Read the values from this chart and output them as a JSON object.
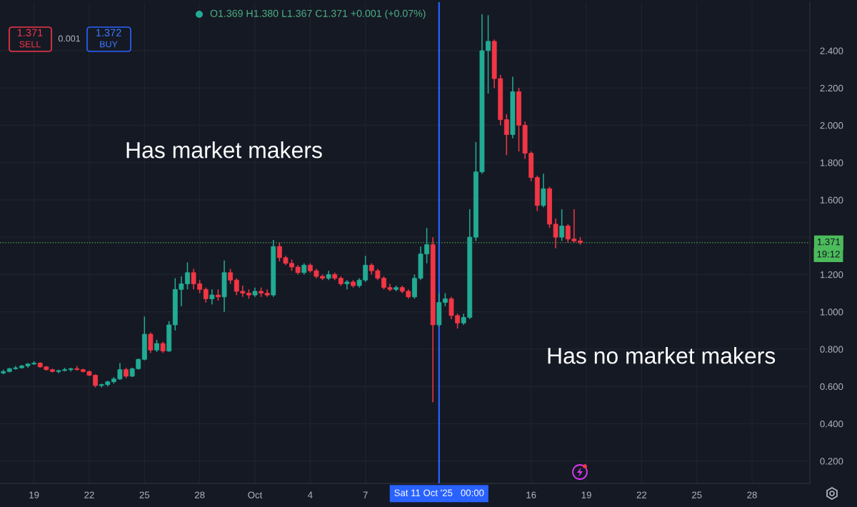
{
  "chart_data": {
    "type": "candlestick",
    "subtitle": "O1.369 H1.380 L1.367 C1.371 +0.001 (+0.07%)",
    "x": [
      "2025-09-17T08:00",
      "2025-09-17T16:00",
      "2025-09-18T00:00",
      "2025-09-18T08:00",
      "2025-09-18T16:00",
      "2025-09-19T00:00",
      "2025-09-19T08:00",
      "2025-09-19T16:00",
      "2025-09-20T00:00",
      "2025-09-20T08:00",
      "2025-09-20T16:00",
      "2025-09-21T00:00",
      "2025-09-21T08:00",
      "2025-09-21T16:00",
      "2025-09-22T00:00",
      "2025-09-22T08:00",
      "2025-09-22T16:00",
      "2025-09-23T00:00",
      "2025-09-23T08:00",
      "2025-09-23T16:00",
      "2025-09-24T00:00",
      "2025-09-24T08:00",
      "2025-09-24T16:00",
      "2025-09-25T00:00",
      "2025-09-25T08:00",
      "2025-09-25T16:00",
      "2025-09-26T00:00",
      "2025-09-26T08:00",
      "2025-09-26T16:00",
      "2025-09-27T00:00",
      "2025-09-27T08:00",
      "2025-09-27T16:00",
      "2025-09-28T00:00",
      "2025-09-28T08:00",
      "2025-09-28T16:00",
      "2025-09-29T00:00",
      "2025-09-29T08:00",
      "2025-09-29T16:00",
      "2025-09-30T00:00",
      "2025-09-30T08:00",
      "2025-09-30T16:00",
      "2025-10-01T00:00",
      "2025-10-01T08:00",
      "2025-10-01T16:00",
      "2025-10-02T00:00",
      "2025-10-02T08:00",
      "2025-10-02T16:00",
      "2025-10-03T00:00",
      "2025-10-03T08:00",
      "2025-10-03T16:00",
      "2025-10-04T00:00",
      "2025-10-04T08:00",
      "2025-10-04T16:00",
      "2025-10-05T00:00",
      "2025-10-05T08:00",
      "2025-10-05T16:00",
      "2025-10-06T00:00",
      "2025-10-06T08:00",
      "2025-10-06T16:00",
      "2025-10-07T00:00",
      "2025-10-07T08:00",
      "2025-10-07T16:00",
      "2025-10-08T00:00",
      "2025-10-08T08:00",
      "2025-10-08T16:00",
      "2025-10-09T00:00",
      "2025-10-09T08:00",
      "2025-10-09T16:00",
      "2025-10-10T00:00",
      "2025-10-10T08:00",
      "2025-10-10T16:00",
      "2025-10-11T00:00",
      "2025-10-11T08:00",
      "2025-10-11T16:00",
      "2025-10-12T00:00",
      "2025-10-12T08:00",
      "2025-10-12T16:00",
      "2025-10-13T00:00",
      "2025-10-13T08:00",
      "2025-10-13T16:00",
      "2025-10-14T00:00",
      "2025-10-14T08:00",
      "2025-10-14T16:00",
      "2025-10-15T00:00",
      "2025-10-15T08:00",
      "2025-10-15T16:00",
      "2025-10-16T00:00",
      "2025-10-16T08:00",
      "2025-10-16T16:00",
      "2025-10-17T00:00",
      "2025-10-17T08:00",
      "2025-10-17T16:00",
      "2025-10-18T00:00",
      "2025-10-18T08:00",
      "2025-10-18T16:00"
    ],
    "ohlc": [
      [
        0.672,
        0.69,
        0.665,
        0.68
      ],
      [
        0.68,
        0.7,
        0.675,
        0.695
      ],
      [
        0.695,
        0.71,
        0.69,
        0.7
      ],
      [
        0.7,
        0.715,
        0.695,
        0.71
      ],
      [
        0.71,
        0.725,
        0.7,
        0.72
      ],
      [
        0.72,
        0.735,
        0.715,
        0.725
      ],
      [
        0.725,
        0.73,
        0.7,
        0.705
      ],
      [
        0.705,
        0.71,
        0.685,
        0.69
      ],
      [
        0.69,
        0.695,
        0.675,
        0.68
      ],
      [
        0.68,
        0.69,
        0.67,
        0.685
      ],
      [
        0.685,
        0.7,
        0.68,
        0.69
      ],
      [
        0.69,
        0.7,
        0.68,
        0.695
      ],
      [
        0.695,
        0.71,
        0.685,
        0.69
      ],
      [
        0.69,
        0.695,
        0.675,
        0.68
      ],
      [
        0.68,
        0.685,
        0.655,
        0.66
      ],
      [
        0.66,
        0.665,
        0.595,
        0.605
      ],
      [
        0.605,
        0.615,
        0.595,
        0.61
      ],
      [
        0.61,
        0.63,
        0.6,
        0.625
      ],
      [
        0.625,
        0.65,
        0.615,
        0.64
      ],
      [
        0.64,
        0.725,
        0.635,
        0.69
      ],
      [
        0.69,
        0.7,
        0.645,
        0.655
      ],
      [
        0.655,
        0.7,
        0.65,
        0.695
      ],
      [
        0.695,
        0.75,
        0.69,
        0.745
      ],
      [
        0.745,
        0.975,
        0.74,
        0.88
      ],
      [
        0.88,
        0.89,
        0.78,
        0.795
      ],
      [
        0.795,
        0.85,
        0.785,
        0.83
      ],
      [
        0.83,
        0.84,
        0.78,
        0.79
      ],
      [
        0.79,
        0.95,
        0.785,
        0.93
      ],
      [
        0.93,
        1.18,
        0.9,
        1.12
      ],
      [
        1.12,
        1.19,
        1.03,
        1.15
      ],
      [
        1.15,
        1.265,
        1.12,
        1.21
      ],
      [
        1.21,
        1.23,
        1.12,
        1.15
      ],
      [
        1.15,
        1.17,
        1.1,
        1.12
      ],
      [
        1.12,
        1.13,
        1.05,
        1.07
      ],
      [
        1.07,
        1.12,
        1.04,
        1.09
      ],
      [
        1.09,
        1.12,
        1.06,
        1.08
      ],
      [
        1.08,
        1.275,
        1.0,
        1.21
      ],
      [
        1.21,
        1.23,
        1.15,
        1.17
      ],
      [
        1.17,
        1.18,
        1.09,
        1.11
      ],
      [
        1.11,
        1.14,
        1.08,
        1.1
      ],
      [
        1.1,
        1.12,
        1.07,
        1.09
      ],
      [
        1.09,
        1.13,
        1.08,
        1.11
      ],
      [
        1.11,
        1.13,
        1.08,
        1.1
      ],
      [
        1.1,
        1.12,
        1.08,
        1.09
      ],
      [
        1.09,
        1.385,
        1.08,
        1.35
      ],
      [
        1.35,
        1.37,
        1.27,
        1.29
      ],
      [
        1.29,
        1.3,
        1.25,
        1.26
      ],
      [
        1.26,
        1.28,
        1.22,
        1.24
      ],
      [
        1.24,
        1.25,
        1.2,
        1.21
      ],
      [
        1.21,
        1.26,
        1.2,
        1.25
      ],
      [
        1.25,
        1.26,
        1.21,
        1.22
      ],
      [
        1.22,
        1.23,
        1.18,
        1.19
      ],
      [
        1.19,
        1.2,
        1.17,
        1.18
      ],
      [
        1.18,
        1.22,
        1.17,
        1.2
      ],
      [
        1.2,
        1.21,
        1.17,
        1.18
      ],
      [
        1.18,
        1.19,
        1.14,
        1.15
      ],
      [
        1.15,
        1.17,
        1.12,
        1.16
      ],
      [
        1.16,
        1.17,
        1.13,
        1.14
      ],
      [
        1.14,
        1.18,
        1.13,
        1.17
      ],
      [
        1.17,
        1.3,
        1.16,
        1.25
      ],
      [
        1.25,
        1.26,
        1.2,
        1.22
      ],
      [
        1.22,
        1.23,
        1.17,
        1.18
      ],
      [
        1.18,
        1.19,
        1.12,
        1.13
      ],
      [
        1.13,
        1.15,
        1.11,
        1.12
      ],
      [
        1.12,
        1.14,
        1.11,
        1.13
      ],
      [
        1.13,
        1.14,
        1.1,
        1.11
      ],
      [
        1.11,
        1.12,
        1.07,
        1.08
      ],
      [
        1.08,
        1.2,
        1.07,
        1.18
      ],
      [
        1.18,
        1.35,
        1.17,
        1.31
      ],
      [
        1.31,
        1.45,
        1.26,
        1.36
      ],
      [
        1.36,
        1.4,
        0.515,
        0.93
      ],
      [
        0.93,
        1.1,
        0.92,
        1.05
      ],
      [
        1.05,
        1.1,
        1.03,
        1.07
      ],
      [
        1.07,
        1.08,
        0.96,
        0.98
      ],
      [
        0.98,
        0.99,
        0.91,
        0.94
      ],
      [
        0.94,
        0.99,
        0.93,
        0.97
      ],
      [
        0.97,
        1.55,
        0.96,
        1.4
      ],
      [
        1.4,
        1.91,
        1.38,
        1.75
      ],
      [
        1.75,
        2.595,
        1.74,
        2.4
      ],
      [
        2.4,
        2.59,
        2.17,
        2.45
      ],
      [
        2.45,
        2.46,
        2.2,
        2.25
      ],
      [
        2.25,
        2.27,
        2.0,
        2.03
      ],
      [
        2.03,
        2.06,
        1.84,
        1.95
      ],
      [
        1.95,
        2.26,
        1.93,
        2.18
      ],
      [
        2.18,
        2.2,
        1.86,
        2.0
      ],
      [
        2.0,
        2.02,
        1.82,
        1.85
      ],
      [
        1.85,
        1.86,
        1.7,
        1.72
      ],
      [
        1.72,
        1.73,
        1.54,
        1.57
      ],
      [
        1.57,
        1.74,
        1.56,
        1.66
      ],
      [
        1.66,
        1.67,
        1.45,
        1.47
      ],
      [
        1.47,
        1.5,
        1.34,
        1.4
      ],
      [
        1.4,
        1.55,
        1.38,
        1.46
      ],
      [
        1.46,
        1.47,
        1.37,
        1.39
      ],
      [
        1.39,
        1.55,
        1.37,
        1.38
      ],
      [
        1.38,
        1.4,
        1.36,
        1.371
      ]
    ],
    "colors": [
      "#22ab94",
      "#22ab94",
      "#22ab94",
      "#22ab94",
      "#22ab94",
      "#22ab94",
      "#f23645",
      "#f23645",
      "#f23645",
      "#22ab94",
      "#22ab94",
      "#22ab94",
      "#f23645",
      "#f23645",
      "#f23645",
      "#f23645",
      "#22ab94",
      "#22ab94",
      "#22ab94",
      "#22ab94",
      "#f23645",
      "#22ab94",
      "#22ab94",
      "#22ab94",
      "#f23645",
      "#22ab94",
      "#f23645",
      "#22ab94",
      "#22ab94",
      "#22ab94",
      "#22ab94",
      "#f23645",
      "#f23645",
      "#f23645",
      "#22ab94",
      "#f23645",
      "#22ab94",
      "#f23645",
      "#f23645",
      "#f23645",
      "#f23645",
      "#22ab94",
      "#f23645",
      "#f23645",
      "#22ab94",
      "#f23645",
      "#f23645",
      "#f23645",
      "#f23645",
      "#22ab94",
      "#f23645",
      "#f23645",
      "#f23645",
      "#22ab94",
      "#f23645",
      "#f23645",
      "#22ab94",
      "#f23645",
      "#22ab94",
      "#22ab94",
      "#f23645",
      "#f23645",
      "#f23645",
      "#f23645",
      "#22ab94",
      "#f23645",
      "#f23645",
      "#22ab94",
      "#22ab94",
      "#22ab94",
      "#f23645",
      "#22ab94",
      "#22ab94",
      "#f23645",
      "#f23645",
      "#22ab94",
      "#22ab94",
      "#22ab94",
      "#22ab94",
      "#22ab94",
      "#f23645",
      "#f23645",
      "#f23645",
      "#22ab94",
      "#f23645",
      "#f23645",
      "#f23645",
      "#f23645",
      "#22ab94",
      "#f23645",
      "#f23645",
      "#22ab94",
      "#f23645",
      "#f23645",
      "#f23645"
    ],
    "xlim": [
      "2025-09-17T03:40",
      "2025-10-31T03:20"
    ],
    "ylim": [
      0.08,
      2.66
    ],
    "xticks": [
      {
        "value": "2025-09-19",
        "label": "19"
      },
      {
        "value": "2025-09-22",
        "label": "22"
      },
      {
        "value": "2025-09-25",
        "label": "25"
      },
      {
        "value": "2025-09-28",
        "label": "28"
      },
      {
        "value": "2025-10-01",
        "label": "Oct"
      },
      {
        "value": "2025-10-04",
        "label": "4"
      },
      {
        "value": "2025-10-07",
        "label": "7"
      },
      {
        "value": "2025-10-16",
        "label": "16"
      },
      {
        "value": "2025-10-19",
        "label": "19"
      },
      {
        "value": "2025-10-22",
        "label": "22"
      },
      {
        "value": "2025-10-25",
        "label": "25"
      },
      {
        "value": "2025-10-28",
        "label": "28"
      }
    ],
    "yticks": [
      {
        "value": 0.2,
        "label": "0.200"
      },
      {
        "value": 0.4,
        "label": "0.400"
      },
      {
        "value": 0.6,
        "label": "0.600"
      },
      {
        "value": 0.8,
        "label": "0.800"
      },
      {
        "value": 1.0,
        "label": "1.000"
      },
      {
        "value": 1.2,
        "label": "1.200"
      },
      {
        "value": 1.4,
        "label": null
      },
      {
        "value": 1.6,
        "label": "1.600"
      },
      {
        "value": 1.8,
        "label": "1.800"
      },
      {
        "value": 2.0,
        "label": "2.000"
      },
      {
        "value": 2.2,
        "label": "2.200"
      },
      {
        "value": 2.4,
        "label": "2.400"
      }
    ],
    "grid": true,
    "ref_lines": [
      {
        "axis": "x",
        "value": "2025-10-11T00:00",
        "label": "Sat 11 Oct '25   00:00",
        "color": "#2962ff"
      },
      {
        "axis": "y",
        "value": 1.371,
        "label": "1.371",
        "color": "#4cbb5b",
        "line_style": "dotted"
      }
    ],
    "annotations": [
      "1.371",
      "SELL",
      "0.001",
      "1.372",
      "BUY",
      "Has market makers",
      "Has no market makers",
      "19:12"
    ]
  }
}
